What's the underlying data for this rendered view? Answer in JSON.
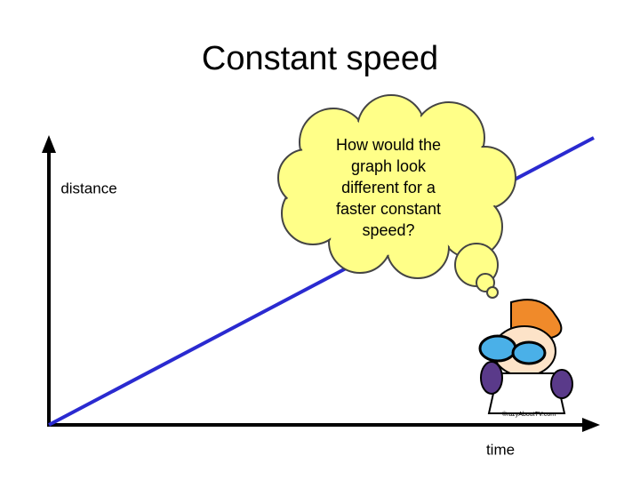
{
  "title": "Constant speed",
  "axes": {
    "y_label": "distance",
    "x_label": "time"
  },
  "thought_bubble": {
    "lines": [
      "How would the",
      "graph look",
      "different for a",
      "faster constant",
      "speed?"
    ]
  },
  "image_caption": "©razyAboutTV.com"
}
